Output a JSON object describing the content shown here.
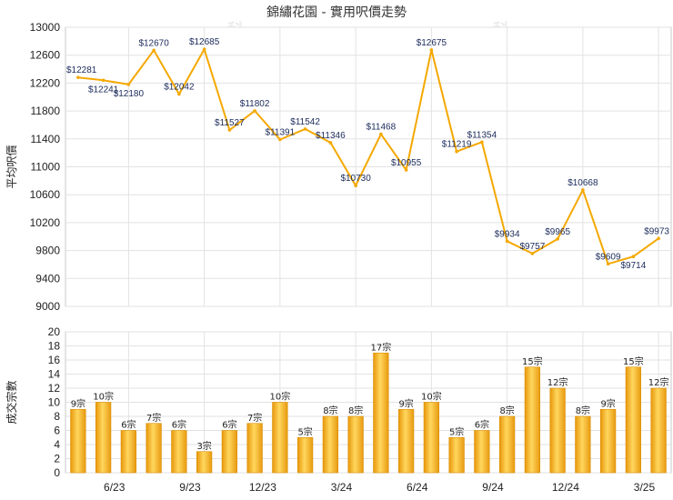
{
  "title": "錦繡花園 - 實用呎價走勢",
  "watermark": "科一",
  "chart_data": [
    {
      "type": "line",
      "ylabel": "平均呎價",
      "ylim": [
        9000,
        13000
      ],
      "yticks": [
        9000,
        9400,
        9800,
        10200,
        10600,
        11000,
        11400,
        11800,
        12200,
        12600,
        13000
      ],
      "color": "#f5a800",
      "values": [
        12281,
        12241,
        12180,
        12670,
        12042,
        12685,
        11527,
        11802,
        11391,
        11542,
        11346,
        10730,
        11468,
        10955,
        12675,
        11219,
        11354,
        9934,
        9757,
        9965,
        10668,
        9609,
        9714,
        9973
      ],
      "labels": [
        "$12281",
        "$12241",
        "$12180",
        "$12670",
        "$12042",
        "$12685",
        "$11527",
        "$11802",
        "$11391",
        "$11542",
        "$11346",
        "$10730",
        "$11468",
        "$10955",
        "$12675",
        "$11219",
        "$11354",
        "$9934",
        "$9757",
        "$9965",
        "$10668",
        "$9609",
        "$9714",
        "$9973"
      ],
      "label_below": [
        false,
        true,
        true,
        false,
        false,
        false,
        false,
        false,
        false,
        false,
        false,
        false,
        false,
        false,
        false,
        false,
        false,
        false,
        false,
        false,
        false,
        false,
        true,
        false
      ]
    },
    {
      "type": "bar",
      "ylabel": "成交宗數",
      "ylim": [
        0,
        20
      ],
      "yticks": [
        0,
        2,
        4,
        6,
        8,
        10,
        12,
        14,
        16,
        18,
        20
      ],
      "color": "#f5a800",
      "values": [
        9,
        10,
        6,
        7,
        6,
        3,
        6,
        7,
        10,
        5,
        8,
        8,
        17,
        9,
        10,
        5,
        6,
        8,
        15,
        12,
        8,
        9,
        15,
        12
      ],
      "labels": [
        "9宗",
        "10宗",
        "6宗",
        "7宗",
        "6宗",
        "3宗",
        "6宗",
        "7宗",
        "10宗",
        "5宗",
        "8宗",
        "8宗",
        "17宗",
        "9宗",
        "10宗",
        "5宗",
        "6宗",
        "8宗",
        "15宗",
        "12宗",
        "8宗",
        "9宗",
        "15宗",
        "12宗"
      ],
      "x_tick_labels": [
        "6/23",
        "9/23",
        "12/23",
        "3/24",
        "6/24",
        "9/24",
        "12/24",
        "3/25"
      ],
      "x_tick_points": [
        2.5,
        5.5,
        8.5,
        11.5,
        14.5,
        17.5,
        20.5,
        23.5
      ]
    }
  ]
}
